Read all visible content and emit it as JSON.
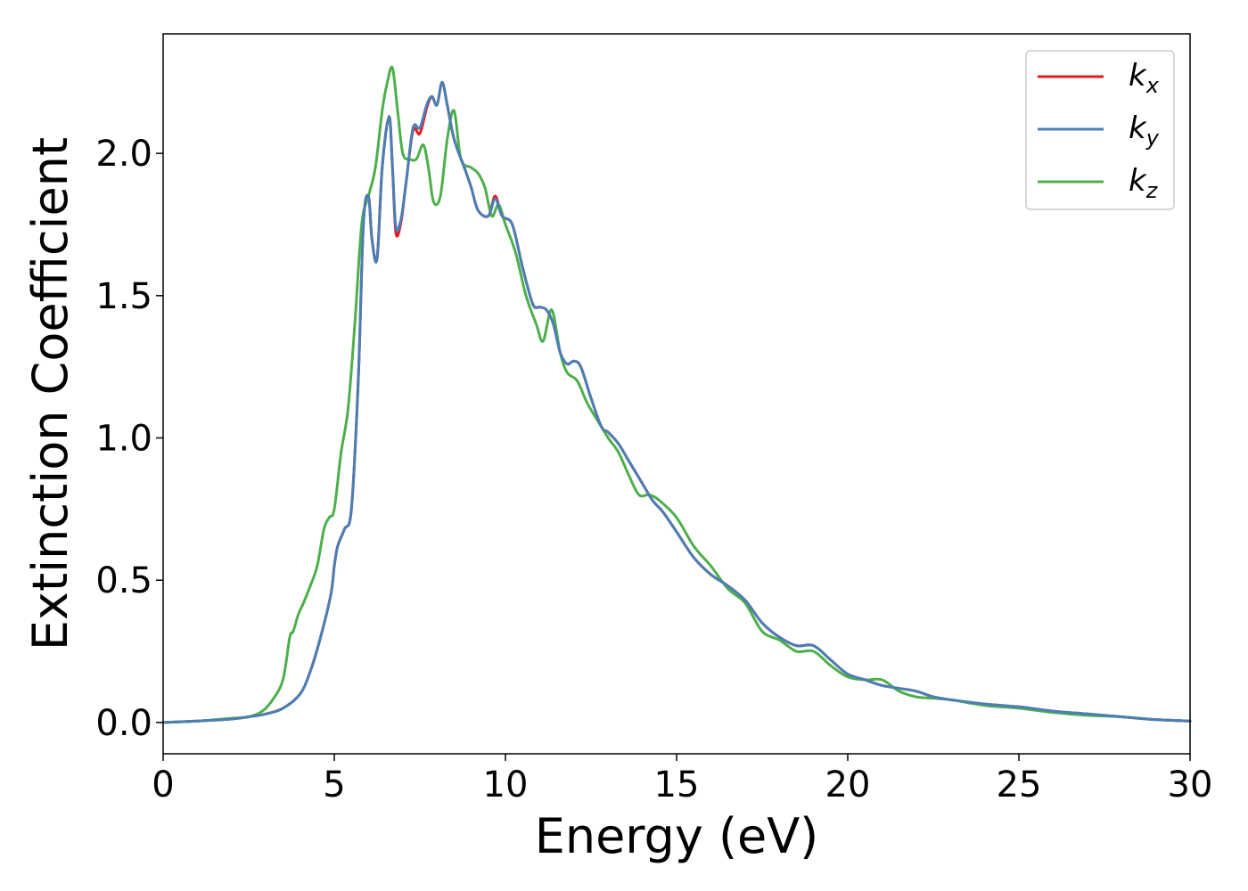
{
  "chart_data": {
    "type": "line",
    "title": "",
    "xlabel": "Energy (eV)",
    "ylabel": "Extinction Coefficient",
    "xlim": [
      0,
      30
    ],
    "ylim": [
      -0.11,
      2.42
    ],
    "xticks": [
      "0",
      "5",
      "10",
      "15",
      "20",
      "25",
      "30"
    ],
    "yticks": [
      "0.0",
      "0.5",
      "1.0",
      "1.5",
      "2.0"
    ],
    "grid": false,
    "legend_position": "top-right",
    "series": [
      {
        "name": "kx",
        "label_main": "k",
        "label_sub": "x",
        "color": "#e41a1c",
        "x": [
          0,
          1,
          2,
          2.5,
          3,
          3.5,
          4,
          4.3,
          4.6,
          4.9,
          5.0,
          5.1,
          5.3,
          5.5,
          5.7,
          5.85,
          6.0,
          6.1,
          6.25,
          6.4,
          6.6,
          6.7,
          6.8,
          6.95,
          7.1,
          7.3,
          7.5,
          7.7,
          7.85,
          8.0,
          8.15,
          8.3,
          8.5,
          8.8,
          9.0,
          9.2,
          9.5,
          9.7,
          9.9,
          10.2,
          10.5,
          10.8,
          11.0,
          11.2,
          11.4,
          11.6,
          11.8,
          12.0,
          12.2,
          12.5,
          12.8,
          13.0,
          13.3,
          13.6,
          14.0,
          14.3,
          14.6,
          15.0,
          15.5,
          16.0,
          16.5,
          17.0,
          17.5,
          18.0,
          18.5,
          19.0,
          19.5,
          20.0,
          20.5,
          21.0,
          21.5,
          22.0,
          22.5,
          23.0,
          24.0,
          25.0,
          26.0,
          27.0,
          28.0,
          29.0,
          30.0
        ],
        "y": [
          0.0,
          0.005,
          0.012,
          0.02,
          0.03,
          0.05,
          0.1,
          0.18,
          0.3,
          0.45,
          0.55,
          0.62,
          0.68,
          0.75,
          1.2,
          1.75,
          1.85,
          1.7,
          1.63,
          1.95,
          2.13,
          1.95,
          1.72,
          1.76,
          1.9,
          2.08,
          2.07,
          2.16,
          2.2,
          2.17,
          2.25,
          2.17,
          2.05,
          1.95,
          1.88,
          1.8,
          1.78,
          1.85,
          1.78,
          1.75,
          1.6,
          1.47,
          1.46,
          1.45,
          1.4,
          1.3,
          1.26,
          1.27,
          1.25,
          1.14,
          1.04,
          1.02,
          0.98,
          0.92,
          0.84,
          0.78,
          0.74,
          0.67,
          0.58,
          0.52,
          0.48,
          0.43,
          0.35,
          0.3,
          0.27,
          0.27,
          0.22,
          0.17,
          0.15,
          0.13,
          0.12,
          0.11,
          0.09,
          0.08,
          0.065,
          0.055,
          0.04,
          0.03,
          0.02,
          0.01,
          0.005
        ]
      },
      {
        "name": "ky",
        "label_main": "k",
        "label_sub": "y",
        "color": "#4a7fb5",
        "x": [
          0,
          1,
          2,
          2.5,
          3,
          3.5,
          4,
          4.3,
          4.6,
          4.9,
          5.0,
          5.1,
          5.3,
          5.5,
          5.7,
          5.85,
          6.0,
          6.1,
          6.25,
          6.4,
          6.6,
          6.7,
          6.8,
          6.95,
          7.1,
          7.3,
          7.5,
          7.7,
          7.85,
          8.0,
          8.15,
          8.3,
          8.5,
          8.8,
          9.0,
          9.2,
          9.5,
          9.7,
          9.9,
          10.2,
          10.5,
          10.8,
          11.0,
          11.2,
          11.4,
          11.6,
          11.8,
          12.0,
          12.2,
          12.5,
          12.8,
          13.0,
          13.3,
          13.6,
          14.0,
          14.3,
          14.6,
          15.0,
          15.5,
          16.0,
          16.5,
          17.0,
          17.5,
          18.0,
          18.5,
          19.0,
          19.5,
          20.0,
          20.5,
          21.0,
          21.5,
          22.0,
          22.5,
          23.0,
          24.0,
          25.0,
          26.0,
          27.0,
          28.0,
          29.0,
          30.0
        ],
        "y": [
          0.0,
          0.005,
          0.012,
          0.02,
          0.03,
          0.05,
          0.1,
          0.18,
          0.3,
          0.45,
          0.55,
          0.62,
          0.68,
          0.75,
          1.2,
          1.75,
          1.85,
          1.7,
          1.63,
          1.95,
          2.13,
          1.95,
          1.74,
          1.77,
          1.9,
          2.09,
          2.09,
          2.17,
          2.2,
          2.17,
          2.25,
          2.17,
          2.05,
          1.95,
          1.88,
          1.8,
          1.78,
          1.84,
          1.78,
          1.75,
          1.6,
          1.47,
          1.46,
          1.45,
          1.4,
          1.3,
          1.26,
          1.27,
          1.25,
          1.14,
          1.04,
          1.02,
          0.98,
          0.92,
          0.84,
          0.78,
          0.74,
          0.67,
          0.58,
          0.52,
          0.48,
          0.43,
          0.35,
          0.3,
          0.27,
          0.27,
          0.22,
          0.17,
          0.15,
          0.13,
          0.12,
          0.11,
          0.09,
          0.08,
          0.065,
          0.055,
          0.04,
          0.03,
          0.02,
          0.01,
          0.005
        ]
      },
      {
        "name": "kz",
        "label_main": "k",
        "label_sub": "z",
        "color": "#4daf4a",
        "x": [
          0,
          1,
          2,
          2.5,
          2.9,
          3.2,
          3.5,
          3.7,
          3.8,
          3.95,
          4.1,
          4.3,
          4.5,
          4.7,
          4.85,
          5.0,
          5.2,
          5.4,
          5.6,
          5.8,
          6.0,
          6.2,
          6.4,
          6.55,
          6.7,
          6.85,
          7.0,
          7.2,
          7.4,
          7.6,
          7.75,
          7.9,
          8.1,
          8.3,
          8.5,
          8.7,
          9.0,
          9.2,
          9.4,
          9.6,
          9.8,
          10.0,
          10.3,
          10.6,
          10.9,
          11.1,
          11.35,
          11.6,
          11.8,
          12.1,
          12.4,
          12.8,
          13.0,
          13.3,
          13.6,
          13.9,
          14.2,
          14.5,
          15.0,
          15.5,
          16.0,
          16.5,
          17.0,
          17.5,
          18.0,
          18.5,
          19.0,
          19.5,
          20.0,
          20.5,
          21.0,
          21.5,
          22.0,
          22.5,
          23.0,
          24.0,
          25.0,
          26.0,
          27.0,
          28.0,
          29.0,
          30.0
        ],
        "y": [
          0.0,
          0.005,
          0.015,
          0.02,
          0.04,
          0.08,
          0.15,
          0.3,
          0.32,
          0.38,
          0.42,
          0.48,
          0.55,
          0.68,
          0.72,
          0.75,
          0.95,
          1.1,
          1.4,
          1.75,
          1.85,
          1.95,
          2.15,
          2.25,
          2.3,
          2.15,
          2.0,
          1.98,
          1.98,
          2.03,
          1.95,
          1.83,
          1.85,
          2.05,
          2.15,
          1.98,
          1.95,
          1.93,
          1.88,
          1.78,
          1.82,
          1.75,
          1.65,
          1.5,
          1.4,
          1.34,
          1.45,
          1.3,
          1.23,
          1.2,
          1.12,
          1.04,
          1.0,
          0.95,
          0.87,
          0.8,
          0.8,
          0.78,
          0.72,
          0.62,
          0.55,
          0.47,
          0.42,
          0.32,
          0.29,
          0.25,
          0.25,
          0.2,
          0.16,
          0.15,
          0.15,
          0.11,
          0.09,
          0.085,
          0.08,
          0.06,
          0.05,
          0.035,
          0.025,
          0.02,
          0.01,
          0.005
        ]
      }
    ]
  }
}
